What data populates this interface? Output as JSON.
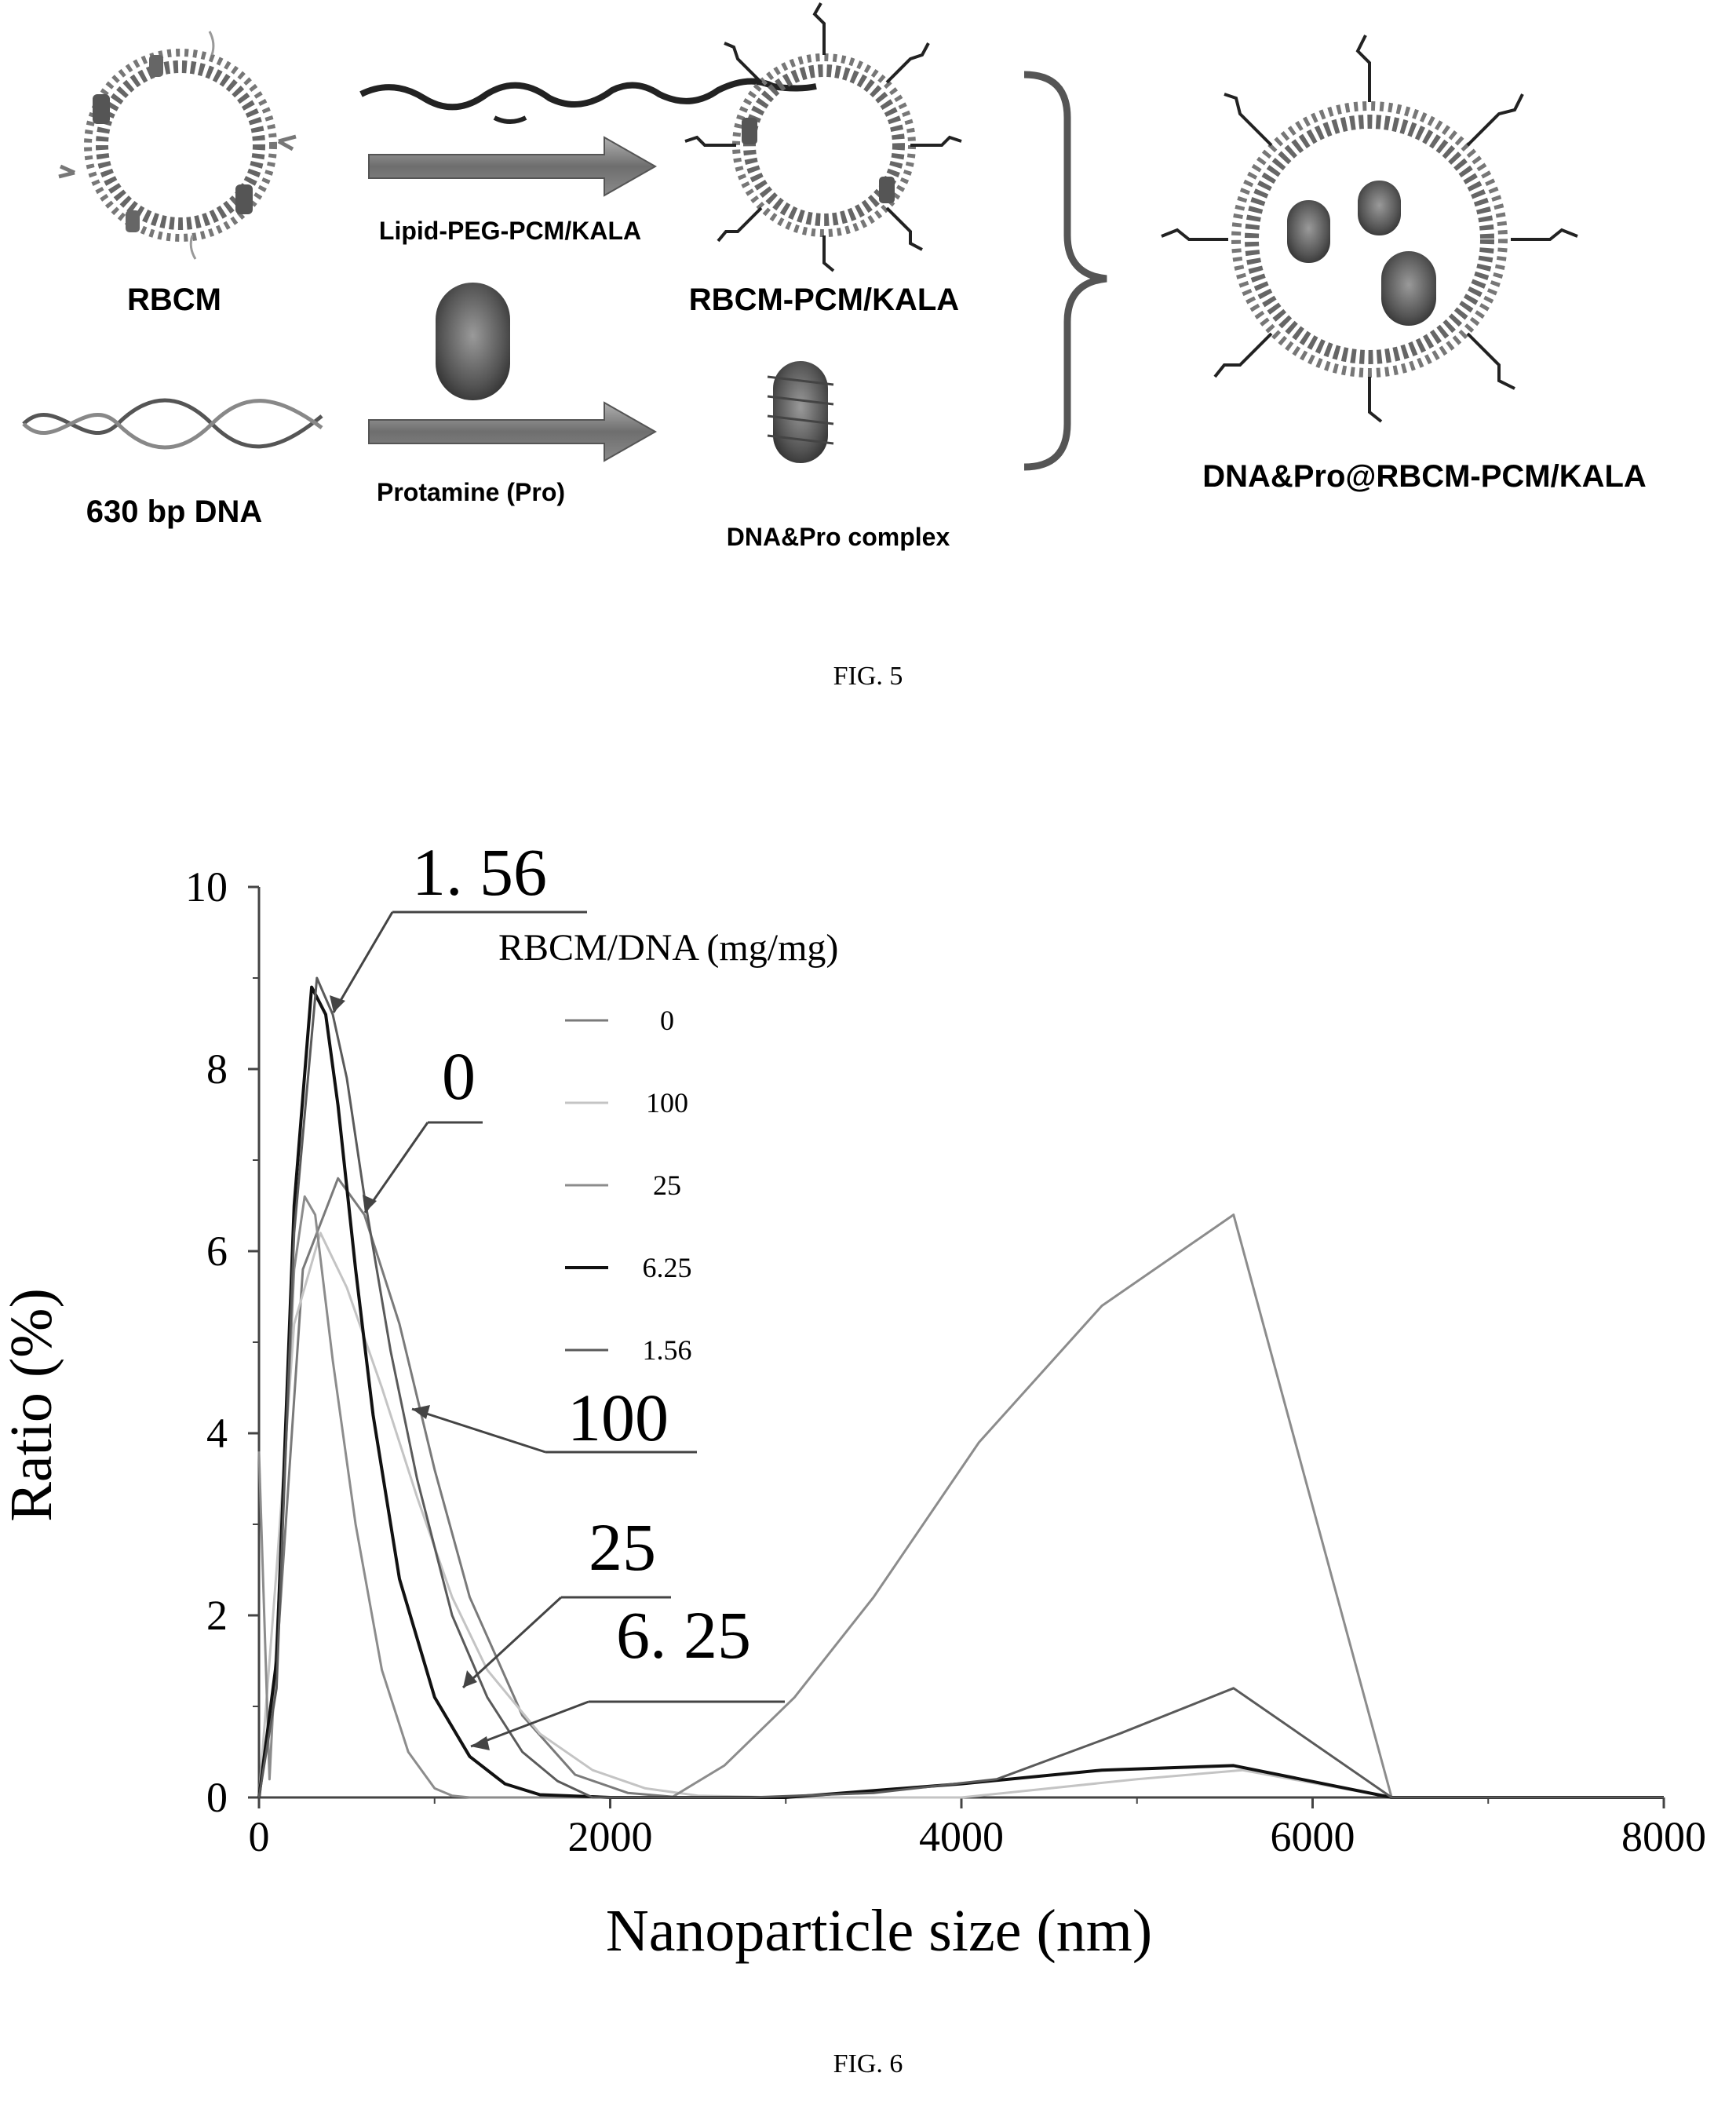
{
  "fig5": {
    "caption": "FIG. 5",
    "labels": {
      "rbcm": "RBCM",
      "lipid_peg": "Lipid-PEG-PCM/KALA",
      "rbcm_pcm": "RBCM-PCM/KALA",
      "dna": "630 bp DNA",
      "protamine": "Protamine (Pro)",
      "complex": "DNA&Pro complex",
      "final": "DNA&Pro@RBCM-PCM/KALA"
    }
  },
  "fig6": {
    "caption": "FIG. 6",
    "legend_title": "RBCM/DNA (mg/mg)",
    "legend_items": [
      "0",
      "100",
      "25",
      "6.25",
      "1.56"
    ],
    "callouts": [
      "1. 56",
      "0",
      "100",
      "25",
      "6. 25"
    ]
  },
  "chart_data": {
    "type": "line",
    "xlabel": "Nanoparticle size (nm)",
    "ylabel": "Ratio (%)",
    "xlim": [
      0,
      8000
    ],
    "ylim": [
      0,
      10
    ],
    "xticks": [
      0,
      2000,
      4000,
      6000,
      8000
    ],
    "yticks": [
      0,
      2,
      4,
      6,
      8,
      10
    ],
    "legend_title": "RBCM/DNA (mg/mg)",
    "series": [
      {
        "name": "0",
        "color": "#7a7a7a",
        "width": 3,
        "x": [
          0,
          100,
          250,
          450,
          600,
          800,
          1000,
          1200,
          1500,
          1800,
          2100,
          2400
        ],
        "y": [
          0,
          1.5,
          5.8,
          6.8,
          6.4,
          5.2,
          3.6,
          2.2,
          0.9,
          0.25,
          0.05,
          0
        ]
      },
      {
        "name": "100",
        "color": "#c4c4c4",
        "width": 3,
        "x": [
          0,
          100,
          200,
          350,
          500,
          700,
          900,
          1100,
          1300,
          1600,
          1900,
          2200,
          2500,
          3000,
          4000,
          5000,
          5600,
          6450,
          8000
        ],
        "y": [
          0,
          2.5,
          5.2,
          6.2,
          5.6,
          4.5,
          3.3,
          2.2,
          1.4,
          0.7,
          0.3,
          0.1,
          0.02,
          0,
          0,
          0.2,
          0.3,
          0,
          0
        ]
      },
      {
        "name": "25",
        "color": "#8c8c8c",
        "width": 3,
        "x": [
          0,
          60,
          120,
          200,
          260,
          320,
          420,
          550,
          700,
          850,
          1000,
          1100,
          1200,
          1700,
          2350,
          2650,
          3050,
          3500,
          4100,
          4800,
          5550,
          6450,
          8000
        ],
        "y": [
          3.8,
          0.2,
          2.5,
          5.8,
          6.6,
          6.4,
          4.8,
          3.0,
          1.4,
          0.5,
          0.1,
          0.02,
          0,
          0,
          0,
          0.35,
          1.1,
          2.2,
          3.9,
          5.4,
          6.4,
          0,
          0
        ]
      },
      {
        "name": "6.25",
        "color": "#111111",
        "width": 4,
        "x": [
          0,
          100,
          200,
          300,
          380,
          450,
          550,
          650,
          800,
          1000,
          1200,
          1400,
          1600,
          2000,
          3000,
          4000,
          4800,
          5550,
          6450,
          8000
        ],
        "y": [
          0,
          1.5,
          6.5,
          8.9,
          8.6,
          7.6,
          5.8,
          4.2,
          2.4,
          1.1,
          0.45,
          0.15,
          0.03,
          0,
          0,
          0.15,
          0.3,
          0.35,
          0,
          0
        ]
      },
      {
        "name": "1.56",
        "color": "#5a5a5a",
        "width": 3,
        "x": [
          0,
          100,
          200,
          330,
          420,
          500,
          600,
          750,
          900,
          1100,
          1300,
          1500,
          1700,
          1900,
          2800,
          3500,
          4200,
          4900,
          5550,
          6450,
          8000
        ],
        "y": [
          0,
          1.2,
          6.2,
          9.0,
          8.6,
          7.9,
          6.6,
          4.9,
          3.5,
          2.0,
          1.1,
          0.5,
          0.18,
          0,
          0,
          0.05,
          0.2,
          0.7,
          1.2,
          0,
          0
        ]
      }
    ]
  }
}
